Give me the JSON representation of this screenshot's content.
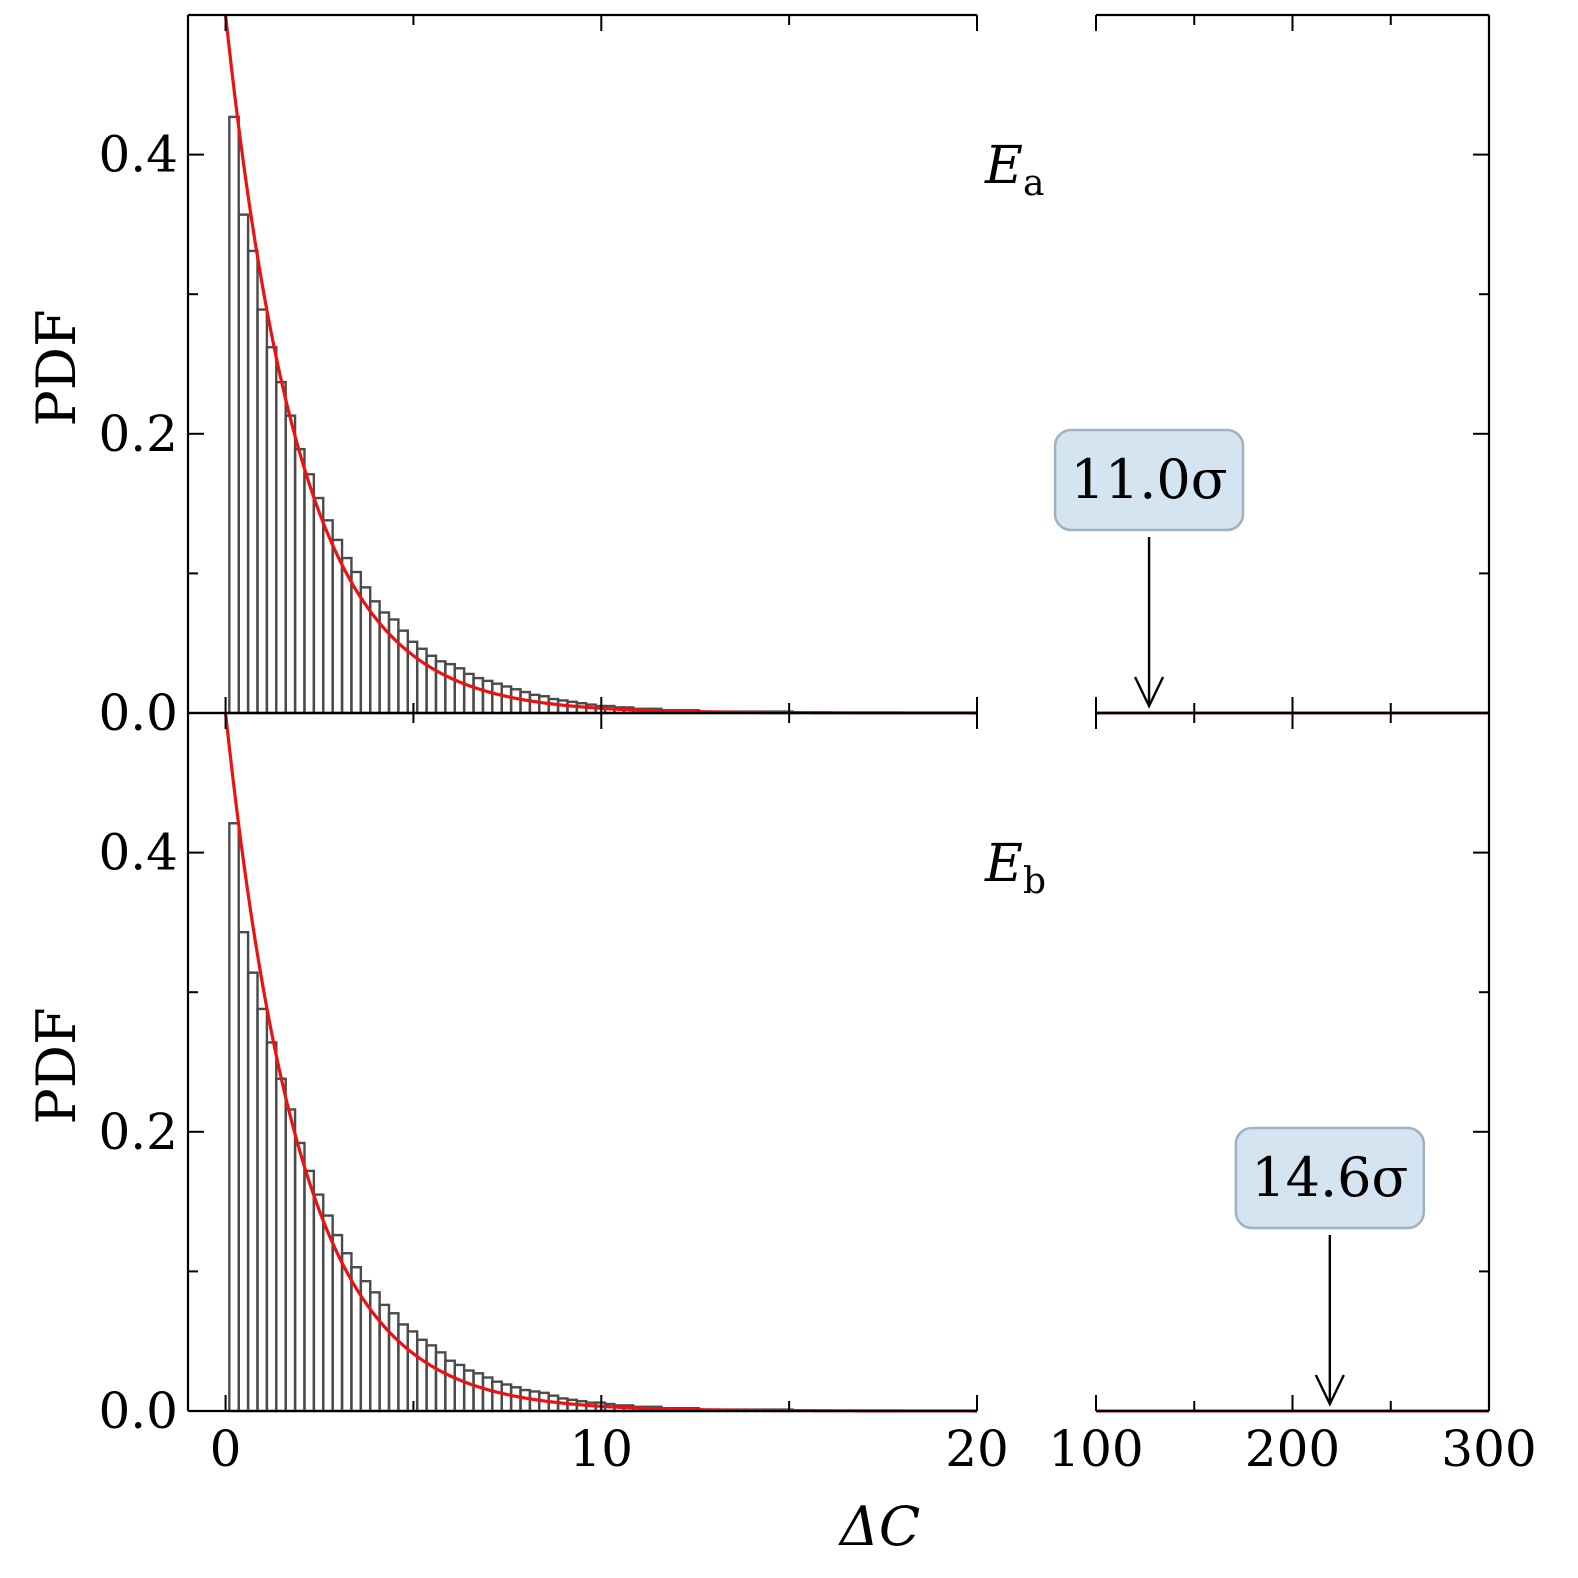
{
  "colors": {
    "fit_line": "#ee1111",
    "bar_edge": "#4a4a4a",
    "annotation_box": "#d4e4f0",
    "annotation_border": "#9fb2c2"
  },
  "chart_data": {
    "type": "bar",
    "shared_x_label": "ΔC",
    "x_axis_break": true,
    "x_segments": [
      {
        "xlim": [
          -1,
          20
        ],
        "ticks": [
          0,
          10,
          20
        ],
        "tick_labels": [
          "0",
          "10",
          "20"
        ]
      },
      {
        "xlim": [
          100,
          300
        ],
        "ticks": [
          100,
          200,
          300
        ],
        "tick_labels": [
          "100",
          "200",
          "300"
        ]
      }
    ],
    "grid": false,
    "panels": [
      {
        "label_main": "E",
        "label_sub": "a",
        "ylabel": "PDF",
        "ylim": [
          0,
          0.5
        ],
        "y_ticks": [
          0.0,
          0.2,
          0.4
        ],
        "y_tick_labels": [
          "0.0",
          "0.2",
          "0.4"
        ],
        "histogram": {
          "bin_width": 0.25,
          "bin_start": 0.1,
          "values": [
            0.427,
            0.357,
            0.331,
            0.289,
            0.262,
            0.237,
            0.213,
            0.189,
            0.171,
            0.154,
            0.138,
            0.124,
            0.111,
            0.101,
            0.09,
            0.08,
            0.072,
            0.067,
            0.059,
            0.051,
            0.046,
            0.041,
            0.037,
            0.035,
            0.032,
            0.028,
            0.025,
            0.023,
            0.021,
            0.019,
            0.017,
            0.015,
            0.013,
            0.012,
            0.01,
            0.009,
            0.008,
            0.007,
            0.006,
            0.005,
            0.005,
            0.004,
            0.004,
            0.003,
            0.003,
            0.003,
            0.002,
            0.002,
            0.002,
            0.002,
            0.001,
            0.001,
            0.001,
            0.001,
            0.001,
            0.001,
            0.001,
            0.001,
            0.001,
            0.001
          ]
        },
        "fit_curve": {
          "form": "0.5*exp(-x/2)"
        },
        "annotation": {
          "text": "11.0σ",
          "x": 127,
          "y": 0.0
        }
      },
      {
        "label_main": "E",
        "label_sub": "b",
        "ylabel": "PDF",
        "ylim": [
          0,
          0.5
        ],
        "y_ticks": [
          0.0,
          0.2,
          0.4
        ],
        "y_tick_labels": [
          "0.0",
          "0.2",
          "0.4"
        ],
        "histogram": {
          "bin_width": 0.25,
          "bin_start": 0.1,
          "values": [
            0.421,
            0.343,
            0.314,
            0.288,
            0.264,
            0.238,
            0.216,
            0.192,
            0.172,
            0.155,
            0.14,
            0.126,
            0.113,
            0.103,
            0.093,
            0.085,
            0.076,
            0.07,
            0.062,
            0.057,
            0.051,
            0.047,
            0.042,
            0.036,
            0.033,
            0.029,
            0.027,
            0.024,
            0.021,
            0.019,
            0.017,
            0.015,
            0.014,
            0.013,
            0.011,
            0.009,
            0.008,
            0.007,
            0.006,
            0.006,
            0.005,
            0.004,
            0.004,
            0.003,
            0.003,
            0.003,
            0.002,
            0.002,
            0.002,
            0.002,
            0.001,
            0.001,
            0.001,
            0.001,
            0.001,
            0.001,
            0.001,
            0.001,
            0.001,
            0.001
          ]
        },
        "fit_curve": {
          "form": "0.5*exp(-x/2)"
        },
        "annotation": {
          "text": "14.6σ",
          "x": 219,
          "y": 0.0
        }
      }
    ]
  }
}
